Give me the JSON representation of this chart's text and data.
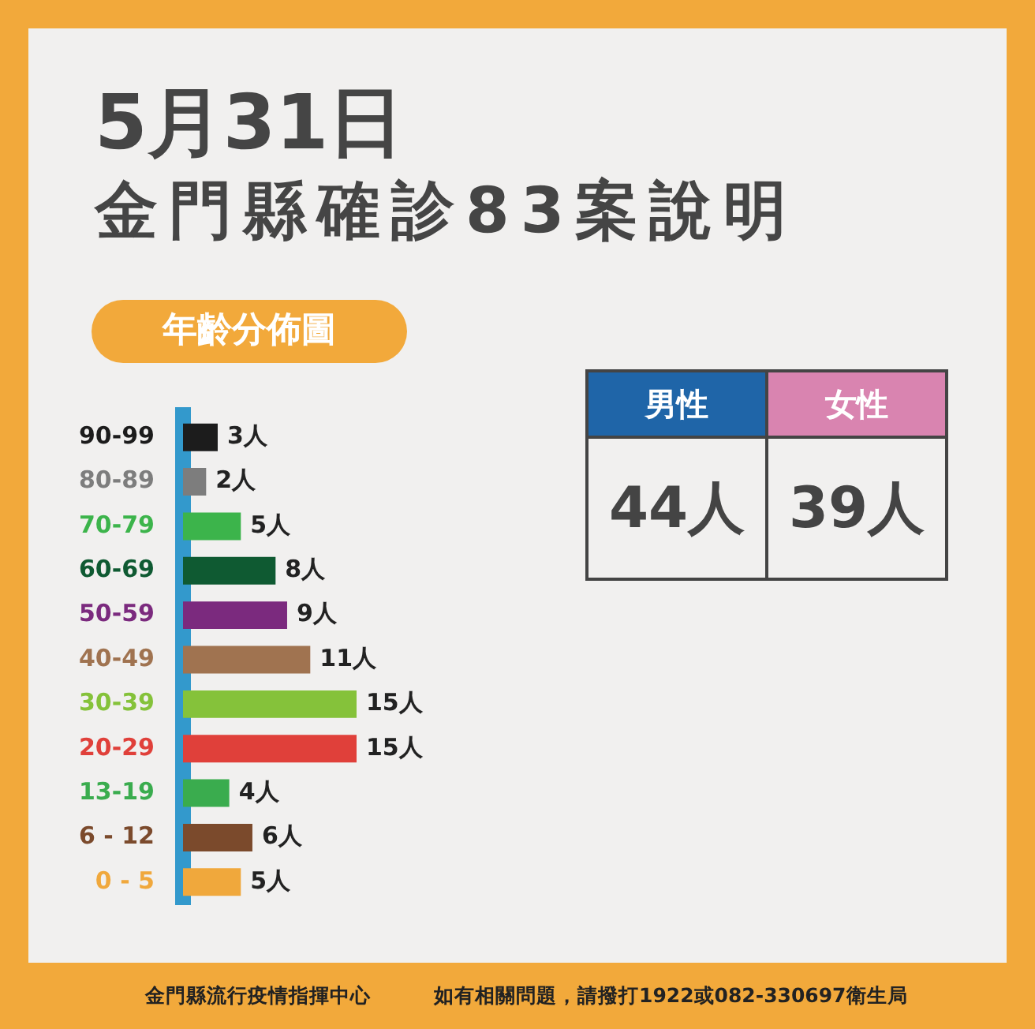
{
  "chart_data": [
    {
      "type": "bar",
      "orientation": "horizontal",
      "title": "5月31日",
      "subtitle": "金門縣確診83案說明",
      "categories": [
        "90-99",
        "80-89",
        "70-79",
        "60-69",
        "50-59",
        "40-49",
        "30-39",
        "20-29",
        "13-19",
        "6 - 12",
        "0 - 5"
      ],
      "values": [
        3,
        2,
        5,
        8,
        9,
        11,
        15,
        15,
        4,
        6,
        5
      ],
      "value_labels": [
        "3人",
        "2人",
        "5人",
        "8人",
        "9人",
        "11人",
        "15人",
        "15人",
        "4人",
        "6人",
        "5人"
      ],
      "colors": [
        "#1c1c1c",
        "#7d7d7d",
        "#3cb44b",
        "#0f5a32",
        "#7b2a7e",
        "#a07350",
        "#85c23a",
        "#e0403a",
        "#3aac4e",
        "#7b4a2c",
        "#f0a83c"
      ],
      "tick_labels": "y",
      "legend": false,
      "annotations": [
        "年齡分佈圖",
        "金門縣流行疫情指揮中心",
        "如有相關問題，請撥打1922或082-330697衛生局"
      ]
    },
    {
      "type": "other",
      "categories": [
        "男性",
        "女性"
      ],
      "value_labels": [
        "44人",
        "39人"
      ],
      "colors": [
        "#1f65a8",
        "#d984b0"
      ]
    }
  ]
}
